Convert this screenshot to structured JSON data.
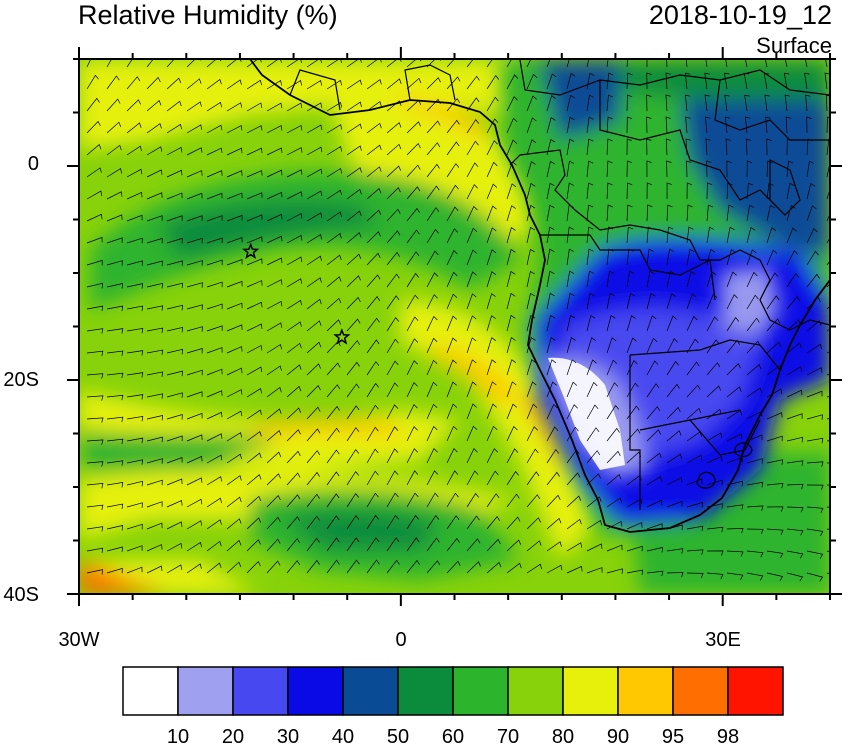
{
  "title": "Relative Humidity (%)",
  "datetime": "2018-10-19_12",
  "level": "Surface",
  "axes": {
    "y_labels": [
      "0",
      "20S",
      "40S"
    ],
    "x_labels": [
      "30W",
      "0",
      "30E"
    ],
    "lon_range": [
      -30,
      40
    ],
    "lat_range": [
      -40,
      10
    ]
  },
  "colorbar": {
    "labels": [
      "10",
      "20",
      "30",
      "40",
      "50",
      "60",
      "70",
      "80",
      "90",
      "95",
      "98"
    ],
    "colors": [
      "#ffffff",
      "#a0a0f0",
      "#4848f0",
      "#0a0ae6",
      "#0a4b96",
      "#0a8c3c",
      "#2db42d",
      "#87d20a",
      "#e6f00a",
      "#ffc800",
      "#ff6e00",
      "#ff1400"
    ]
  },
  "markers": [
    {
      "name": "star-1",
      "lon": -14,
      "lat": -8
    },
    {
      "name": "star-2",
      "lon": -5.5,
      "lat": -16
    }
  ],
  "icons": {
    "marker": "star-icon",
    "wind": "wind-barb-icon"
  }
}
